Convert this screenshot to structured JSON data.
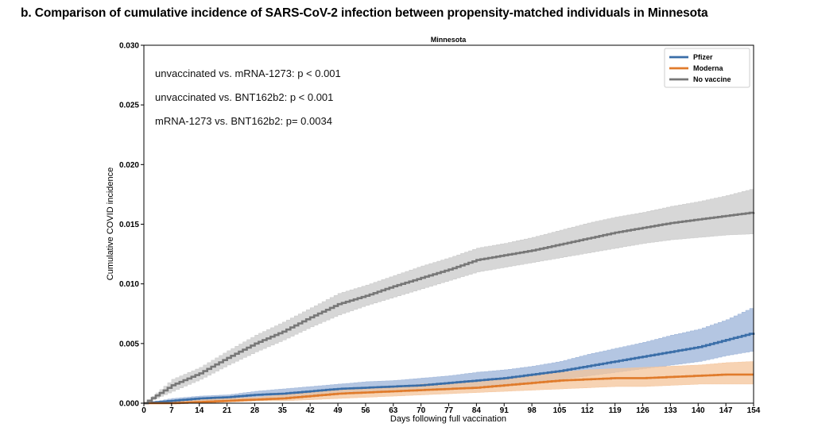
{
  "figure_title": "b.  Comparison of cumulative incidence of SARS-CoV-2 infection between propensity-matched individuals in Minnesota",
  "chart_data": {
    "type": "line",
    "title": "Minnesota",
    "xlabel": "Days following full vaccination",
    "ylabel": "Cumulative COVID incidence",
    "xlim": [
      0,
      154
    ],
    "ylim": [
      0,
      0.03
    ],
    "x_ticks": [
      0,
      7,
      14,
      21,
      28,
      35,
      42,
      49,
      56,
      63,
      70,
      77,
      84,
      91,
      98,
      105,
      112,
      119,
      126,
      133,
      140,
      147,
      154
    ],
    "y_ticks": [
      0.0,
      0.005,
      0.01,
      0.015,
      0.02,
      0.025,
      0.03
    ],
    "y_tick_labels": [
      "0.000",
      "0.005",
      "0.010",
      "0.015",
      "0.020",
      "0.025",
      "0.030"
    ],
    "grid": false,
    "legend_position": "top-right",
    "annotations": [
      "unvaccinated vs. mRNA-1273: p < 0.001",
      "unvaccinated vs. BNT162b2: p < 0.001",
      "mRNA-1273 vs. BNT162b2: p= 0.0034"
    ],
    "x": [
      0,
      7,
      14,
      21,
      28,
      35,
      42,
      49,
      56,
      63,
      70,
      77,
      84,
      91,
      98,
      105,
      112,
      119,
      126,
      133,
      140,
      147,
      154
    ],
    "series": [
      {
        "name": "Pfizer",
        "color": "#3a6ea8",
        "band_color": "#9bb3d8",
        "values": [
          0.0,
          0.0002,
          0.0004,
          0.0005,
          0.0007,
          0.0008,
          0.001,
          0.0012,
          0.0013,
          0.0014,
          0.0015,
          0.0017,
          0.0019,
          0.0021,
          0.0024,
          0.0027,
          0.0031,
          0.0035,
          0.0039,
          0.0043,
          0.0047,
          0.0053,
          0.0059
        ],
        "lower": [
          0.0,
          0.0,
          0.0002,
          0.0003,
          0.0004,
          0.0005,
          0.0007,
          0.0008,
          0.0009,
          0.001,
          0.0011,
          0.0012,
          0.0014,
          0.0016,
          0.0018,
          0.002,
          0.0023,
          0.0026,
          0.0029,
          0.0032,
          0.0035,
          0.004,
          0.0044
        ],
        "upper": [
          0.0,
          0.0004,
          0.0006,
          0.0007,
          0.001,
          0.0012,
          0.0014,
          0.0016,
          0.0018,
          0.0019,
          0.0021,
          0.0023,
          0.0026,
          0.0028,
          0.0031,
          0.0035,
          0.0041,
          0.0046,
          0.0051,
          0.0057,
          0.0062,
          0.007,
          0.0081
        ]
      },
      {
        "name": "Moderna",
        "color": "#e07b2b",
        "band_color": "#f4c49a",
        "values": [
          0.0,
          0.0,
          0.0001,
          0.0002,
          0.0003,
          0.0004,
          0.0006,
          0.0008,
          0.0009,
          0.001,
          0.0011,
          0.0012,
          0.0013,
          0.0015,
          0.0017,
          0.0019,
          0.002,
          0.0021,
          0.0021,
          0.0022,
          0.0023,
          0.0024,
          0.0024
        ],
        "lower": [
          0.0,
          0.0,
          0.0,
          0.0001,
          0.0002,
          0.0002,
          0.0003,
          0.0004,
          0.0005,
          0.0006,
          0.0007,
          0.0008,
          0.0009,
          0.001,
          0.0011,
          0.0012,
          0.0013,
          0.0014,
          0.0014,
          0.0015,
          0.0016,
          0.0016,
          0.0016
        ],
        "upper": [
          0.0,
          0.0002,
          0.0003,
          0.0004,
          0.0005,
          0.0007,
          0.0009,
          0.0011,
          0.0013,
          0.0014,
          0.0016,
          0.0017,
          0.0019,
          0.0021,
          0.0024,
          0.0026,
          0.0028,
          0.0029,
          0.003,
          0.0031,
          0.0032,
          0.0034,
          0.0035
        ]
      },
      {
        "name": "No vaccine",
        "color": "#777777",
        "band_color": "#c9c9c9",
        "values": [
          0.0,
          0.0015,
          0.0025,
          0.0038,
          0.005,
          0.006,
          0.0072,
          0.0083,
          0.009,
          0.0098,
          0.0105,
          0.0112,
          0.012,
          0.0124,
          0.0128,
          0.0133,
          0.0138,
          0.0143,
          0.0147,
          0.0151,
          0.0154,
          0.0157,
          0.016
        ],
        "lower": [
          0.0,
          0.001,
          0.002,
          0.0032,
          0.0043,
          0.0053,
          0.0064,
          0.0074,
          0.0082,
          0.0089,
          0.0096,
          0.0103,
          0.011,
          0.0114,
          0.0118,
          0.0122,
          0.0126,
          0.013,
          0.0134,
          0.0137,
          0.0139,
          0.0141,
          0.0142
        ],
        "upper": [
          0.0,
          0.002,
          0.003,
          0.0044,
          0.0057,
          0.0068,
          0.008,
          0.0092,
          0.0099,
          0.0107,
          0.0115,
          0.0122,
          0.013,
          0.0134,
          0.0139,
          0.0145,
          0.0151,
          0.0156,
          0.016,
          0.0165,
          0.0169,
          0.0174,
          0.018
        ]
      }
    ]
  }
}
